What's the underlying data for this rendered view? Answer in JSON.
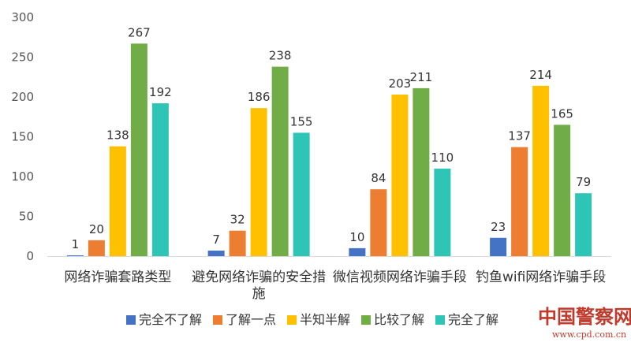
{
  "chart_data": {
    "type": "bar",
    "categories": [
      [
        "网络诈骗套路类型"
      ],
      [
        "避免网络诈骗的安全措",
        "施"
      ],
      [
        "微信视频网络诈骗手段"
      ],
      [
        "钓鱼wifi网络诈骗手段"
      ]
    ],
    "series": [
      {
        "name": "完全不了解",
        "color": "#4472c4",
        "values": [
          1,
          7,
          10,
          23
        ]
      },
      {
        "name": "了解一点",
        "color": "#ed7d31",
        "values": [
          20,
          32,
          84,
          137
        ]
      },
      {
        "name": "半知半解",
        "color": "#ffc000",
        "values": [
          138,
          186,
          203,
          214
        ]
      },
      {
        "name": "比较了解",
        "color": "#70ad47",
        "values": [
          267,
          238,
          211,
          165
        ]
      },
      {
        "name": "完全了解",
        "color": "#2ec4b6",
        "values": [
          192,
          155,
          110,
          79
        ]
      }
    ],
    "ylim": [
      0,
      300
    ],
    "yticks": [
      0,
      50,
      100,
      150,
      200,
      250,
      300
    ],
    "grid": false,
    "legend_position": "bottom"
  },
  "watermark": {
    "text": "中国警察网",
    "url": "www.cpd.com.cn"
  }
}
